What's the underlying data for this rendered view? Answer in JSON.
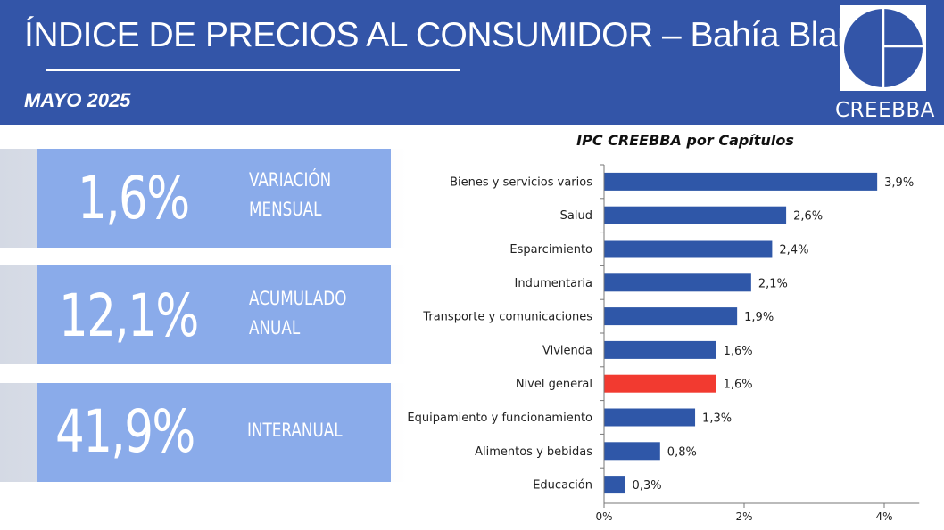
{
  "header": {
    "title": "ÍNDICE DE PRECIOS AL CONSUMIDOR – Bahía Blanca",
    "period": "MAYO 2025",
    "logo_text": "CREEBBA"
  },
  "colors": {
    "header_bg": "#3355a8",
    "kpi_bg": "#8aabea",
    "bar": "#2f57a8",
    "highlight_bar": "#f23a30"
  },
  "kpis": [
    {
      "value": "1,6%",
      "label_line1": "VARIACIÓN",
      "label_line2": "MENSUAL"
    },
    {
      "value": "12,1%",
      "label_line1": "ACUMULADO",
      "label_line2": "ANUAL"
    },
    {
      "value": "41,9%",
      "label_line1": "INTERANUAL",
      "label_line2": ""
    }
  ],
  "chart_data": {
    "type": "bar",
    "orientation": "horizontal",
    "title": "IPC CREEBBA por Capítulos",
    "categories": [
      "Bienes y servicios varios",
      "Salud",
      "Esparcimiento",
      "Indumentaria",
      "Transporte y comunicaciones",
      "Vivienda",
      "Nivel general",
      "Equipamiento y funcionamiento",
      "Alimentos y bebidas",
      "Educación"
    ],
    "values": [
      3.9,
      2.6,
      2.4,
      2.1,
      1.9,
      1.6,
      1.6,
      1.3,
      0.8,
      0.3
    ],
    "value_labels": [
      "3,9%",
      "2,6%",
      "2,4%",
      "2,1%",
      "1,9%",
      "1,6%",
      "1,6%",
      "1,3%",
      "0,8%",
      "0,3%"
    ],
    "highlight_category": "Nivel general",
    "xlim": [
      0,
      4.5
    ],
    "xticks": [
      0,
      2,
      4
    ],
    "xtick_labels": [
      "0%",
      "2%",
      "4%"
    ],
    "xlabel": "",
    "ylabel": "",
    "grid": false,
    "legend": "none"
  }
}
